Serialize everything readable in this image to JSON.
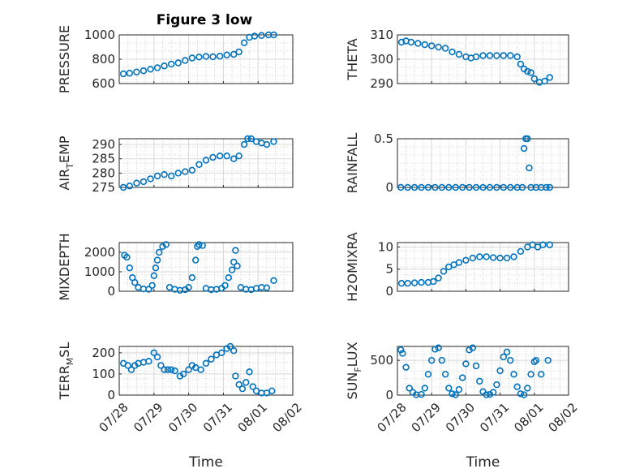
{
  "figure_title": "Figure 3 low",
  "marker_color": "#0072BD",
  "chart_data": [
    {
      "type": "scatter",
      "ylabel": "PRESSURE",
      "xlabel": "",
      "ylim": [
        600,
        1000
      ],
      "yticks": [
        "600",
        "800",
        "1000"
      ],
      "xlim": [
        0,
        5
      ],
      "xticks": [
        "07/28",
        "07/29",
        "07/30",
        "07/31",
        "08/01",
        "08/02"
      ],
      "grid": true,
      "points": [
        [
          0.12,
          680
        ],
        [
          0.3,
          685
        ],
        [
          0.5,
          695
        ],
        [
          0.7,
          705
        ],
        [
          0.9,
          718
        ],
        [
          1.1,
          730
        ],
        [
          1.3,
          745
        ],
        [
          1.5,
          760
        ],
        [
          1.7,
          770
        ],
        [
          1.9,
          790
        ],
        [
          2.1,
          810
        ],
        [
          2.3,
          818
        ],
        [
          2.5,
          823
        ],
        [
          2.7,
          820
        ],
        [
          2.9,
          825
        ],
        [
          3.1,
          835
        ],
        [
          3.3,
          840
        ],
        [
          3.45,
          860
        ],
        [
          3.6,
          935
        ],
        [
          3.75,
          980
        ],
        [
          3.9,
          990
        ],
        [
          4.1,
          995
        ],
        [
          4.3,
          1000
        ],
        [
          4.45,
          1000
        ]
      ]
    },
    {
      "type": "scatter",
      "ylabel": "THETA",
      "xlabel": "",
      "ylim": [
        290,
        310
      ],
      "yticks": [
        "290",
        "300",
        "310"
      ],
      "xlim": [
        0,
        5
      ],
      "xticks": [
        "07/28",
        "07/29",
        "07/30",
        "07/31",
        "08/01",
        "08/02"
      ],
      "grid": true,
      "points": [
        [
          0.12,
          307
        ],
        [
          0.25,
          307.5
        ],
        [
          0.4,
          307
        ],
        [
          0.6,
          306.5
        ],
        [
          0.8,
          306
        ],
        [
          1.0,
          305.5
        ],
        [
          1.2,
          305
        ],
        [
          1.4,
          304.5
        ],
        [
          1.6,
          303
        ],
        [
          1.8,
          302
        ],
        [
          2.0,
          301
        ],
        [
          2.15,
          300.5
        ],
        [
          2.3,
          301
        ],
        [
          2.5,
          301.5
        ],
        [
          2.7,
          301.5
        ],
        [
          2.9,
          301.5
        ],
        [
          3.1,
          301.5
        ],
        [
          3.3,
          301.5
        ],
        [
          3.5,
          301
        ],
        [
          3.6,
          298
        ],
        [
          3.7,
          296
        ],
        [
          3.8,
          295
        ],
        [
          3.9,
          294.5
        ],
        [
          4.0,
          292
        ],
        [
          4.15,
          290.5
        ],
        [
          4.3,
          291
        ],
        [
          4.45,
          292.5
        ]
      ]
    },
    {
      "type": "scatter",
      "ylabel_main": "AIR",
      "ylabel_sub": "T",
      "ylabel_rest": "EMP",
      "xlabel": "",
      "ylim": [
        275,
        292
      ],
      "yticks": [
        "275",
        "280",
        "285",
        "290"
      ],
      "xlim": [
        0,
        5
      ],
      "xticks": [
        "07/28",
        "07/29",
        "07/30",
        "07/31",
        "08/01",
        "08/02"
      ],
      "grid": true,
      "points": [
        [
          0.12,
          275
        ],
        [
          0.3,
          275.5
        ],
        [
          0.5,
          276.5
        ],
        [
          0.7,
          277
        ],
        [
          0.9,
          278
        ],
        [
          1.1,
          279
        ],
        [
          1.3,
          279.5
        ],
        [
          1.5,
          279
        ],
        [
          1.7,
          280
        ],
        [
          1.9,
          280.5
        ],
        [
          2.1,
          281
        ],
        [
          2.3,
          283
        ],
        [
          2.5,
          284.5
        ],
        [
          2.7,
          285.5
        ],
        [
          2.9,
          286
        ],
        [
          3.1,
          286
        ],
        [
          3.3,
          285
        ],
        [
          3.45,
          286
        ],
        [
          3.6,
          290
        ],
        [
          3.7,
          292
        ],
        [
          3.8,
          292
        ],
        [
          3.95,
          291
        ],
        [
          4.1,
          290.5
        ],
        [
          4.25,
          290
        ],
        [
          4.45,
          291
        ]
      ]
    },
    {
      "type": "scatter",
      "ylabel": "RAINFALL",
      "xlabel": "",
      "ylim": [
        0,
        0.5
      ],
      "yticks": [
        "0",
        "0.5"
      ],
      "xlim": [
        0,
        5
      ],
      "xticks": [
        "07/28",
        "07/29",
        "07/30",
        "07/31",
        "08/01",
        "08/02"
      ],
      "grid": true,
      "points": [
        [
          0.1,
          0
        ],
        [
          0.3,
          0
        ],
        [
          0.5,
          0
        ],
        [
          0.7,
          0
        ],
        [
          0.9,
          0
        ],
        [
          1.1,
          0
        ],
        [
          1.3,
          0
        ],
        [
          1.5,
          0
        ],
        [
          1.7,
          0
        ],
        [
          1.9,
          0
        ],
        [
          2.1,
          0
        ],
        [
          2.3,
          0
        ],
        [
          2.5,
          0
        ],
        [
          2.7,
          0
        ],
        [
          2.9,
          0
        ],
        [
          3.1,
          0
        ],
        [
          3.3,
          0
        ],
        [
          3.5,
          0
        ],
        [
          3.65,
          0
        ],
        [
          3.7,
          0.4
        ],
        [
          3.75,
          0.5
        ],
        [
          3.8,
          0.5
        ],
        [
          3.85,
          0.2
        ],
        [
          3.9,
          0
        ],
        [
          4.05,
          0
        ],
        [
          4.2,
          0
        ],
        [
          4.35,
          0
        ],
        [
          4.45,
          0
        ]
      ]
    },
    {
      "type": "scatter",
      "ylabel": "MIXDEPTH",
      "xlabel": "",
      "ylim": [
        0,
        2500
      ],
      "yticks": [
        "0",
        "1000",
        "2000"
      ],
      "xlim": [
        0,
        5
      ],
      "xticks": [
        "07/28",
        "07/29",
        "07/30",
        "07/31",
        "08/01",
        "08/02"
      ],
      "grid": true,
      "points": [
        [
          0.15,
          1850
        ],
        [
          0.22,
          1750
        ],
        [
          0.3,
          1200
        ],
        [
          0.38,
          700
        ],
        [
          0.45,
          450
        ],
        [
          0.55,
          200
        ],
        [
          0.7,
          120
        ],
        [
          0.85,
          100
        ],
        [
          0.95,
          300
        ],
        [
          1.0,
          800
        ],
        [
          1.05,
          1200
        ],
        [
          1.1,
          1600
        ],
        [
          1.15,
          2000
        ],
        [
          1.25,
          2300
        ],
        [
          1.35,
          2400
        ],
        [
          1.45,
          200
        ],
        [
          1.6,
          100
        ],
        [
          1.75,
          50
        ],
        [
          1.9,
          80
        ],
        [
          2.0,
          200
        ],
        [
          2.1,
          700
        ],
        [
          2.2,
          1600
        ],
        [
          2.25,
          2300
        ],
        [
          2.3,
          2400
        ],
        [
          2.4,
          2350
        ],
        [
          2.5,
          150
        ],
        [
          2.65,
          80
        ],
        [
          2.8,
          100
        ],
        [
          2.95,
          150
        ],
        [
          3.05,
          300
        ],
        [
          3.15,
          700
        ],
        [
          3.25,
          1100
        ],
        [
          3.3,
          1500
        ],
        [
          3.35,
          2100
        ],
        [
          3.4,
          1300
        ],
        [
          3.5,
          200
        ],
        [
          3.65,
          100
        ],
        [
          3.8,
          80
        ],
        [
          3.95,
          150
        ],
        [
          4.1,
          200
        ],
        [
          4.25,
          180
        ],
        [
          4.45,
          550
        ]
      ]
    },
    {
      "type": "scatter",
      "ylabel": "H2OMIXRA",
      "xlabel": "",
      "ylim": [
        0,
        11
      ],
      "yticks": [
        "0",
        "5",
        "10"
      ],
      "xlim": [
        0,
        5
      ],
      "xticks": [
        "07/28",
        "07/29",
        "07/30",
        "07/31",
        "08/01",
        "08/02"
      ],
      "grid": true,
      "points": [
        [
          0.12,
          1.8
        ],
        [
          0.3,
          1.8
        ],
        [
          0.5,
          1.9
        ],
        [
          0.7,
          2
        ],
        [
          0.9,
          2
        ],
        [
          1.05,
          2.2
        ],
        [
          1.2,
          3
        ],
        [
          1.35,
          4.5
        ],
        [
          1.5,
          5.5
        ],
        [
          1.65,
          6
        ],
        [
          1.8,
          6.5
        ],
        [
          2.0,
          7
        ],
        [
          2.2,
          7.5
        ],
        [
          2.4,
          7.8
        ],
        [
          2.6,
          7.8
        ],
        [
          2.8,
          7.6
        ],
        [
          3.0,
          7.5
        ],
        [
          3.2,
          7.5
        ],
        [
          3.4,
          7.8
        ],
        [
          3.6,
          9
        ],
        [
          3.8,
          10
        ],
        [
          3.95,
          10.5
        ],
        [
          4.1,
          10
        ],
        [
          4.25,
          10.5
        ],
        [
          4.45,
          10.5
        ]
      ]
    },
    {
      "type": "scatter",
      "ylabel_main": "TERR",
      "ylabel_sub": "M",
      "ylabel_rest": "SL",
      "xlabel": "Time",
      "ylim": [
        0,
        230
      ],
      "yticks": [
        "0",
        "100",
        "200"
      ],
      "xlim": [
        0,
        5
      ],
      "xticks": [
        "07/28",
        "07/29",
        "07/30",
        "07/31",
        "08/01",
        "08/02"
      ],
      "grid": true,
      "points": [
        [
          0.12,
          150
        ],
        [
          0.25,
          140
        ],
        [
          0.35,
          120
        ],
        [
          0.45,
          140
        ],
        [
          0.55,
          150
        ],
        [
          0.7,
          155
        ],
        [
          0.85,
          160
        ],
        [
          1.0,
          200
        ],
        [
          1.1,
          180
        ],
        [
          1.2,
          140
        ],
        [
          1.3,
          120
        ],
        [
          1.4,
          120
        ],
        [
          1.5,
          120
        ],
        [
          1.6,
          115
        ],
        [
          1.75,
          90
        ],
        [
          1.85,
          100
        ],
        [
          2.0,
          120
        ],
        [
          2.1,
          140
        ],
        [
          2.2,
          130
        ],
        [
          2.35,
          120
        ],
        [
          2.5,
          150
        ],
        [
          2.65,
          170
        ],
        [
          2.8,
          190
        ],
        [
          2.95,
          200
        ],
        [
          3.1,
          220
        ],
        [
          3.2,
          230
        ],
        [
          3.3,
          210
        ],
        [
          3.35,
          90
        ],
        [
          3.45,
          50
        ],
        [
          3.55,
          30
        ],
        [
          3.65,
          60
        ],
        [
          3.75,
          110
        ],
        [
          3.85,
          40
        ],
        [
          3.95,
          20
        ],
        [
          4.1,
          10
        ],
        [
          4.25,
          10
        ],
        [
          4.4,
          20
        ]
      ]
    },
    {
      "type": "scatter",
      "ylabel_main": "SUN",
      "ylabel_sub": "F",
      "ylabel_rest": "LUX",
      "xlabel": "Time",
      "ylim": [
        0,
        700
      ],
      "yticks": [
        "0",
        "500"
      ],
      "xlim": [
        0,
        5
      ],
      "xticks": [
        "07/28",
        "07/29",
        "07/30",
        "07/31",
        "08/01",
        "08/02"
      ],
      "grid": true,
      "points": [
        [
          0.1,
          650
        ],
        [
          0.15,
          600
        ],
        [
          0.25,
          400
        ],
        [
          0.35,
          100
        ],
        [
          0.45,
          40
        ],
        [
          0.55,
          5
        ],
        [
          0.7,
          10
        ],
        [
          0.8,
          100
        ],
        [
          0.9,
          300
        ],
        [
          1.0,
          500
        ],
        [
          1.1,
          660
        ],
        [
          1.2,
          680
        ],
        [
          1.3,
          500
        ],
        [
          1.4,
          300
        ],
        [
          1.5,
          100
        ],
        [
          1.6,
          20
        ],
        [
          1.7,
          5
        ],
        [
          1.8,
          80
        ],
        [
          1.9,
          250
        ],
        [
          2.0,
          450
        ],
        [
          2.1,
          650
        ],
        [
          2.2,
          680
        ],
        [
          2.3,
          420
        ],
        [
          2.4,
          200
        ],
        [
          2.5,
          50
        ],
        [
          2.6,
          5
        ],
        [
          2.7,
          10
        ],
        [
          2.8,
          40
        ],
        [
          2.9,
          150
        ],
        [
          3.0,
          350
        ],
        [
          3.1,
          550
        ],
        [
          3.2,
          620
        ],
        [
          3.3,
          500
        ],
        [
          3.4,
          300
        ],
        [
          3.5,
          120
        ],
        [
          3.6,
          20
        ],
        [
          3.7,
          5
        ],
        [
          3.8,
          100
        ],
        [
          3.9,
          300
        ],
        [
          4.0,
          480
        ],
        [
          4.05,
          500
        ],
        [
          4.2,
          300
        ],
        [
          4.4,
          500
        ]
      ]
    }
  ]
}
